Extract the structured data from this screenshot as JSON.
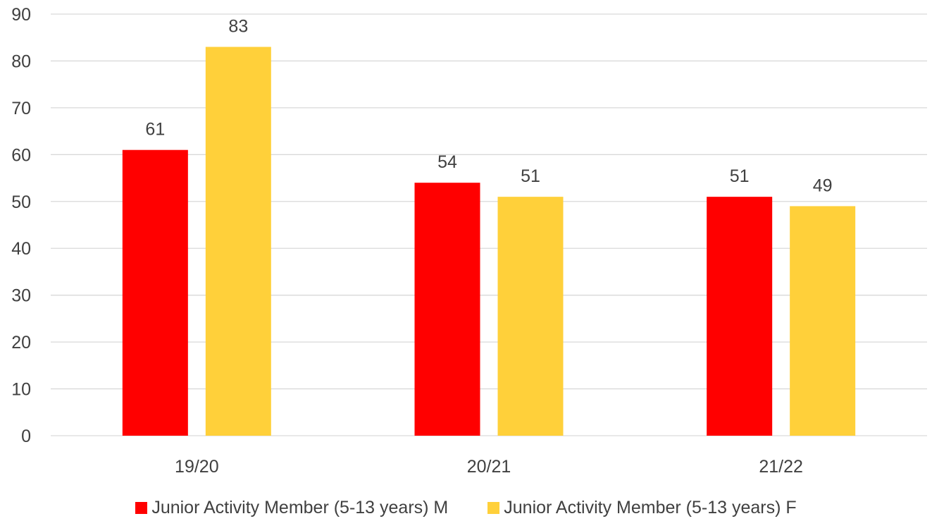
{
  "chart_data": {
    "type": "bar",
    "title": "",
    "xlabel": "",
    "ylabel": "",
    "categories": [
      "19/20",
      "20/21",
      "21/22"
    ],
    "ylim": [
      0,
      90
    ],
    "yticks": [
      0,
      10,
      20,
      30,
      40,
      50,
      60,
      70,
      80,
      90
    ],
    "grid": true,
    "legend_position": "bottom",
    "data_labels": true,
    "series": [
      {
        "name": "Junior Activity Member (5-13 years) M",
        "color": "#FF0000",
        "values": [
          61,
          54,
          51
        ]
      },
      {
        "name": "Junior Activity Member (5-13 years) F",
        "color": "#FFD03A",
        "values": [
          83,
          51,
          49
        ]
      }
    ]
  }
}
